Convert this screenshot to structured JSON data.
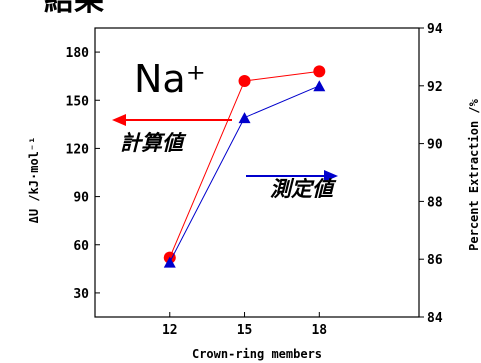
{
  "chart_data": {
    "type": "line",
    "heading": "結果",
    "annotation": "Na⁺",
    "x": [
      12,
      15,
      18
    ],
    "x_ticks": [
      12,
      15,
      18
    ],
    "xlabel": "Crown-ring members",
    "xlim": [
      9,
      22
    ],
    "y_left": {
      "label": "ΔU /kJ·mol⁻¹",
      "lim": [
        15,
        195
      ],
      "ticks": [
        30,
        60,
        90,
        120,
        150,
        180
      ]
    },
    "y_right": {
      "label": "Percent Extraction /%",
      "lim": [
        84,
        94
      ],
      "ticks": [
        84,
        86,
        88,
        90,
        92,
        94
      ]
    },
    "series": [
      {
        "name": "計算値",
        "axis": "left",
        "marker": "circle",
        "color": "#ff0000",
        "values": [
          52,
          162,
          168
        ],
        "arrow": "left"
      },
      {
        "name": "測定値",
        "axis": "right",
        "marker": "triangle",
        "color": "#0000cc",
        "values": [
          85.9,
          90.9,
          92.0
        ],
        "arrow": "right"
      }
    ],
    "grid": false
  }
}
